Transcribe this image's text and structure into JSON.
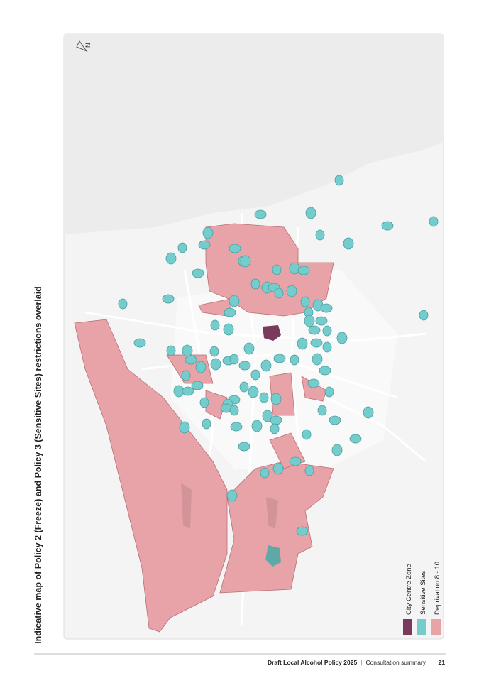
{
  "page": {
    "title": "Indicative map of Policy 2 (Freeze) and Policy 3 (Sensitive Sites) restrictions overlaid",
    "map": {
      "compass": "N",
      "legend": [
        {
          "label": "City Centre Zone",
          "color": "#7a3a5c"
        },
        {
          "label": "Sensitive Sites",
          "color": "#74cccc"
        },
        {
          "label": "Deprivation 8 - 10",
          "color": "#e8a3a8"
        }
      ]
    },
    "footer": {
      "document": "Draft Local Alcohol Policy 2025",
      "separator": "|",
      "section": "Consultation summary",
      "page_number": "21"
    }
  }
}
